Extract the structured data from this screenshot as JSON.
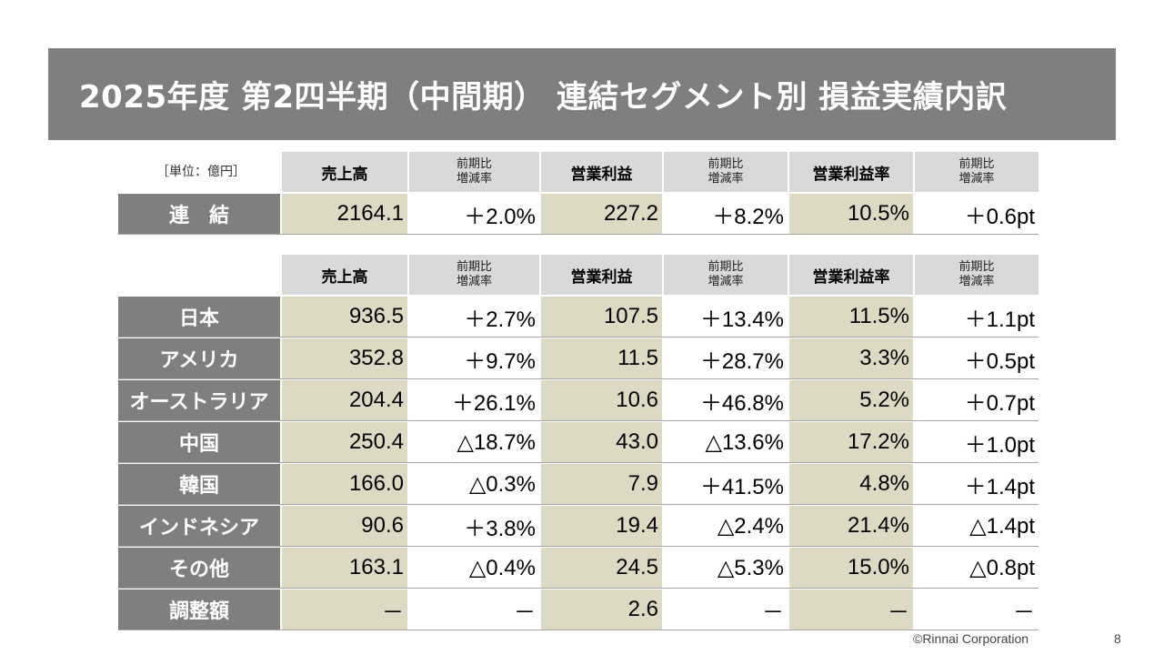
{
  "title": "2025年度 第2四半期（中間期） 連結セグメント別 損益実績内訳",
  "unit_note": "［単位：億円］",
  "headers": {
    "sales": "売上高",
    "yoy_line1": "前期比",
    "yoy_line2": "増減率",
    "op_income": "営業利益",
    "op_margin": "営業利益率"
  },
  "consolidated": {
    "label": "連　結",
    "values": [
      "2164.1",
      "＋2.0%",
      "227.2",
      "＋8.2%",
      "10.5%",
      "＋0.6pt"
    ]
  },
  "segments": [
    {
      "label": "日本",
      "values": [
        "936.5",
        "＋2.7%",
        "107.5",
        "＋13.4%",
        "11.5%",
        "＋1.1pt"
      ]
    },
    {
      "label": "アメリカ",
      "values": [
        "352.8",
        "＋9.7%",
        "11.5",
        "＋28.7%",
        "3.3%",
        "＋0.5pt"
      ]
    },
    {
      "label": "オーストラリア",
      "values": [
        "204.4",
        "＋26.1%",
        "10.6",
        "＋46.8%",
        "5.2%",
        "＋0.7pt"
      ]
    },
    {
      "label": "中国",
      "values": [
        "250.4",
        "△18.7%",
        "43.0",
        "△13.6%",
        "17.2%",
        "＋1.0pt"
      ]
    },
    {
      "label": "韓国",
      "values": [
        "166.0",
        "△0.3%",
        "7.9",
        "＋41.5%",
        "4.8%",
        "＋1.4pt"
      ]
    },
    {
      "label": "インドネシア",
      "values": [
        "90.6",
        "＋3.8%",
        "19.4",
        "△2.4%",
        "21.4%",
        "△1.4pt"
      ]
    },
    {
      "label": "その他",
      "values": [
        "163.1",
        "△0.4%",
        "24.5",
        "△5.3%",
        "15.0%",
        "△0.8pt"
      ]
    },
    {
      "label": "調整額",
      "values": [
        "－",
        "－",
        "2.6",
        "－",
        "－",
        "－"
      ]
    }
  ],
  "footer": {
    "copyright": "©Rinnai Corporation",
    "page": "8"
  },
  "colors": {
    "title_bg": "#7f7f7f",
    "header_bg": "#d9d9d9",
    "highlight_bg": "#ddd9c3"
  }
}
